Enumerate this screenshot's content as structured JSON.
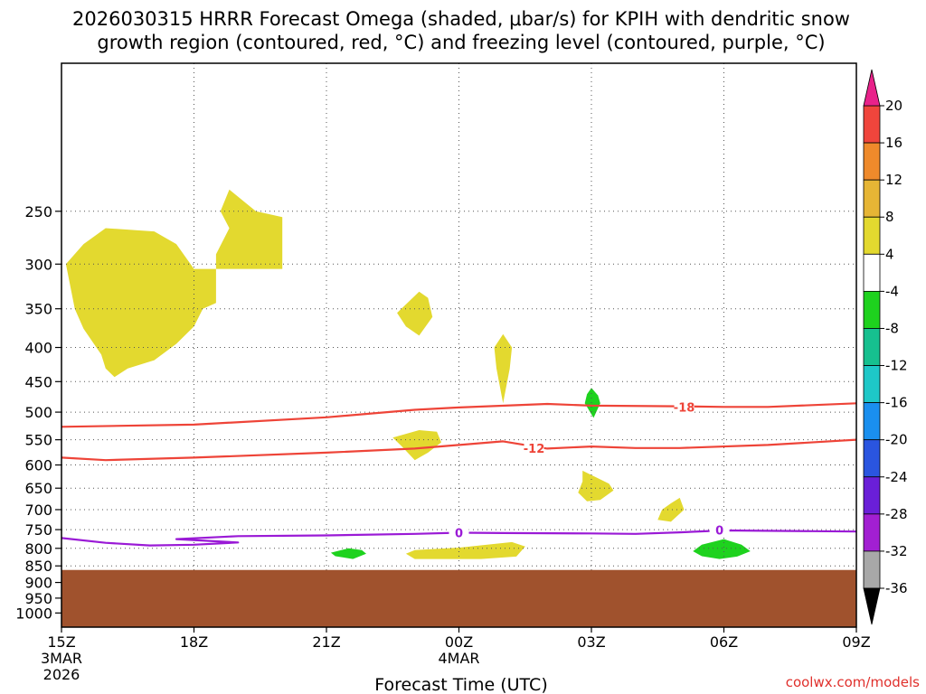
{
  "chart_data": {
    "type": "heatmap",
    "title_line1": "2026030315 HRRR Forecast Omega (shaded, μbar/s) for KPIH with dendritic snow",
    "title_line2": "growth region (contoured, red, °C) and freezing level (contoured, purple, °C)",
    "xlabel": "Forecast Time (UTC)",
    "credit": "coolwx.com/models",
    "x_range_hours": [
      0,
      18
    ],
    "x_ticks": [
      {
        "hour": 0,
        "label": "15Z",
        "date": "3MAR",
        "year": "2026"
      },
      {
        "hour": 3,
        "label": "18Z"
      },
      {
        "hour": 6,
        "label": "21Z"
      },
      {
        "hour": 9,
        "label": "00Z",
        "date": "4MAR"
      },
      {
        "hour": 12,
        "label": "03Z"
      },
      {
        "hour": 15,
        "label": "06Z"
      },
      {
        "hour": 18,
        "label": "09Z"
      }
    ],
    "y_range_hpa": [
      1050,
      150
    ],
    "y_ticks": [
      250,
      300,
      350,
      400,
      450,
      500,
      550,
      600,
      650,
      700,
      750,
      800,
      850,
      900,
      950,
      1000
    ],
    "surface_pressure_hpa": 862,
    "colorbar": {
      "ticks": [
        20,
        16,
        12,
        8,
        4,
        -4,
        -8,
        -12,
        -16,
        -20,
        -24,
        -28,
        -32,
        -36
      ],
      "bins": [
        {
          "from": 16,
          "to": 20,
          "color": "#f0453c"
        },
        {
          "from": 12,
          "to": 16,
          "color": "#ef8a2b"
        },
        {
          "from": 8,
          "to": 12,
          "color": "#e6b535"
        },
        {
          "from": 4,
          "to": 8,
          "color": "#e3d92f"
        },
        {
          "from": -4,
          "to": 4,
          "color": "#ffffff"
        },
        {
          "from": -8,
          "to": -4,
          "color": "#1ed21e"
        },
        {
          "from": -12,
          "to": -8,
          "color": "#16c08f"
        },
        {
          "from": -16,
          "to": -12,
          "color": "#1ec8c8"
        },
        {
          "from": -20,
          "to": -16,
          "color": "#1a8fef"
        },
        {
          "from": -24,
          "to": -20,
          "color": "#2a55e0"
        },
        {
          "from": -28,
          "to": -24,
          "color": "#6a1fd8"
        },
        {
          "from": -32,
          "to": -28,
          "color": "#a21fd2"
        },
        {
          "from": -36,
          "to": -32,
          "color": "#a8a8a8"
        }
      ],
      "top_arrow_color": "#e8228a",
      "bottom_arrow_color": "#000000"
    },
    "contours": [
      {
        "name": "-18 °C",
        "label": "-18",
        "color": "#ee4438",
        "points": [
          [
            0,
            526
          ],
          [
            3,
            522
          ],
          [
            6,
            509
          ],
          [
            8,
            496
          ],
          [
            9,
            492
          ],
          [
            11,
            486
          ],
          [
            12,
            489
          ],
          [
            14,
            490
          ],
          [
            15,
            491
          ],
          [
            16,
            491
          ],
          [
            18,
            485
          ]
        ],
        "label_at": [
          14.1,
          491
        ]
      },
      {
        "name": "-12 °C",
        "label": "-12",
        "color": "#ee4438",
        "points": [
          [
            0,
            585
          ],
          [
            1,
            590
          ],
          [
            3,
            585
          ],
          [
            6,
            575
          ],
          [
            8,
            567
          ],
          [
            9,
            560
          ],
          [
            10,
            553
          ],
          [
            11,
            567
          ],
          [
            12,
            563
          ],
          [
            13,
            566
          ],
          [
            14,
            566
          ],
          [
            16,
            560
          ],
          [
            18,
            550
          ]
        ],
        "label_at": [
          10.7,
          566
        ]
      },
      {
        "name": "0 °C freezing level",
        "label": "0",
        "color": "#9a1ad6",
        "points": [
          [
            0,
            772
          ],
          [
            1,
            785
          ],
          [
            2,
            792
          ],
          [
            3,
            790
          ],
          [
            4,
            784
          ],
          [
            2.6,
            775
          ],
          [
            4,
            767
          ],
          [
            6,
            765
          ],
          [
            8,
            761
          ],
          [
            9,
            758
          ],
          [
            10,
            759
          ],
          [
            12,
            760
          ],
          [
            13,
            761
          ],
          [
            14,
            757
          ],
          [
            15,
            752
          ],
          [
            17,
            754
          ],
          [
            18,
            755
          ]
        ],
        "label_at": [
          9,
          758
        ],
        "label2_at": [
          14.9,
          751
        ]
      }
    ],
    "shaded_regions": [
      {
        "name": "upper-left",
        "value_range": "4 to 8",
        "points": [
          [
            1,
            265
          ],
          [
            2.1,
            268
          ],
          [
            2.6,
            280
          ],
          [
            3,
            305
          ],
          [
            3.5,
            305
          ],
          [
            3.5,
            343
          ],
          [
            3.2,
            350
          ],
          [
            3,
            372
          ],
          [
            2.6,
            395
          ],
          [
            2.1,
            418
          ],
          [
            1.5,
            430
          ],
          [
            1.2,
            443
          ],
          [
            1,
            430
          ],
          [
            0.9,
            410
          ],
          [
            0.5,
            375
          ],
          [
            0.3,
            350
          ],
          [
            0.1,
            300
          ],
          [
            0.5,
            280
          ]
        ]
      },
      {
        "name": "upper-mid",
        "value_range": "4 to 8",
        "points": [
          [
            3.8,
            232
          ],
          [
            4.4,
            250
          ],
          [
            5,
            255
          ],
          [
            5,
            305
          ],
          [
            3.5,
            305
          ],
          [
            3.5,
            290
          ],
          [
            3.8,
            265
          ],
          [
            3.6,
            250
          ]
        ]
      },
      {
        "name": "mid-level blob",
        "value_range": "4 to 8",
        "points": [
          [
            8.1,
            330
          ],
          [
            8.3,
            337
          ],
          [
            8.4,
            360
          ],
          [
            8.1,
            384
          ],
          [
            7.8,
            372
          ],
          [
            7.6,
            355
          ]
        ]
      },
      {
        "name": "vertical streak",
        "value_range": "4 to 8",
        "points": [
          [
            10,
            382
          ],
          [
            10.2,
            400
          ],
          [
            10.15,
            430
          ],
          [
            10,
            485
          ],
          [
            9.85,
            430
          ],
          [
            9.8,
            400
          ]
        ]
      },
      {
        "name": "small green",
        "value_range": "-8 to -4",
        "color": "#1ed21e",
        "points": [
          [
            12,
            460
          ],
          [
            12.15,
            472
          ],
          [
            12.2,
            485
          ],
          [
            12.05,
            510
          ],
          [
            11.85,
            485
          ],
          [
            11.9,
            470
          ]
        ]
      },
      {
        "name": "blob 00Z",
        "value_range": "4 to 8",
        "points": [
          [
            8.1,
            532
          ],
          [
            8.5,
            535
          ],
          [
            8.6,
            555
          ],
          [
            8.3,
            575
          ],
          [
            8,
            590
          ],
          [
            7.7,
            562
          ],
          [
            7.5,
            546
          ]
        ]
      },
      {
        "name": "blob 650",
        "value_range": "4 to 8",
        "points": [
          [
            11.8,
            612
          ],
          [
            12.4,
            640
          ],
          [
            12.5,
            655
          ],
          [
            12.2,
            677
          ],
          [
            11.9,
            680
          ],
          [
            11.7,
            660
          ],
          [
            11.8,
            635
          ]
        ]
      },
      {
        "name": "blob 700",
        "value_range": "4 to 8",
        "points": [
          [
            14,
            672
          ],
          [
            14.1,
            700
          ],
          [
            13.8,
            730
          ],
          [
            13.5,
            725
          ],
          [
            13.6,
            700
          ],
          [
            13.8,
            685
          ]
        ]
      },
      {
        "name": "green 820",
        "value_range": "-8 to -4",
        "color": "#1ed21e",
        "points": [
          [
            6.5,
            800
          ],
          [
            6.8,
            805
          ],
          [
            6.9,
            815
          ],
          [
            6.6,
            830
          ],
          [
            6.2,
            822
          ],
          [
            6.1,
            812
          ]
        ]
      },
      {
        "name": "lower yellow",
        "value_range": "4 to 8",
        "points": [
          [
            9,
            798
          ],
          [
            10.2,
            783
          ],
          [
            10.5,
            795
          ],
          [
            10.3,
            823
          ],
          [
            9.5,
            830
          ],
          [
            8,
            830
          ],
          [
            7.8,
            815
          ],
          [
            8,
            805
          ]
        ]
      },
      {
        "name": "green 06Z",
        "value_range": "-8 to -4",
        "color": "#1ed21e",
        "points": [
          [
            15,
            775
          ],
          [
            15.4,
            790
          ],
          [
            15.6,
            808
          ],
          [
            15.3,
            823
          ],
          [
            14.9,
            830
          ],
          [
            14.5,
            822
          ],
          [
            14.3,
            808
          ],
          [
            14.5,
            790
          ]
        ]
      }
    ]
  }
}
